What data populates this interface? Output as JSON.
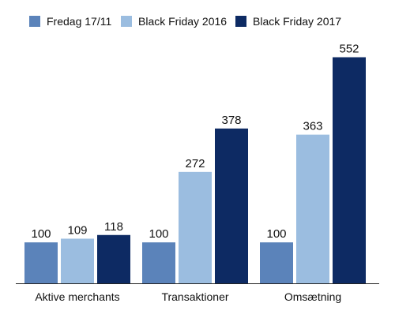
{
  "chart_data": {
    "type": "bar",
    "categories": [
      "Aktive merchants",
      "Transaktioner",
      "Omsætning"
    ],
    "series": [
      {
        "name": "Fredag 17/11",
        "values": [
          100,
          100,
          100
        ],
        "color": "#5b83ba"
      },
      {
        "name": "Black Friday 2016",
        "values": [
          109,
          272,
          363
        ],
        "color": "#9bbde0"
      },
      {
        "name": "Black Friday 2017",
        "values": [
          118,
          378,
          552
        ],
        "color": "#0d2a63"
      }
    ],
    "title": "",
    "xlabel": "",
    "ylabel": "",
    "ylim": [
      0,
      580
    ],
    "grid": false,
    "legend_position": "top",
    "data_labels": true
  }
}
